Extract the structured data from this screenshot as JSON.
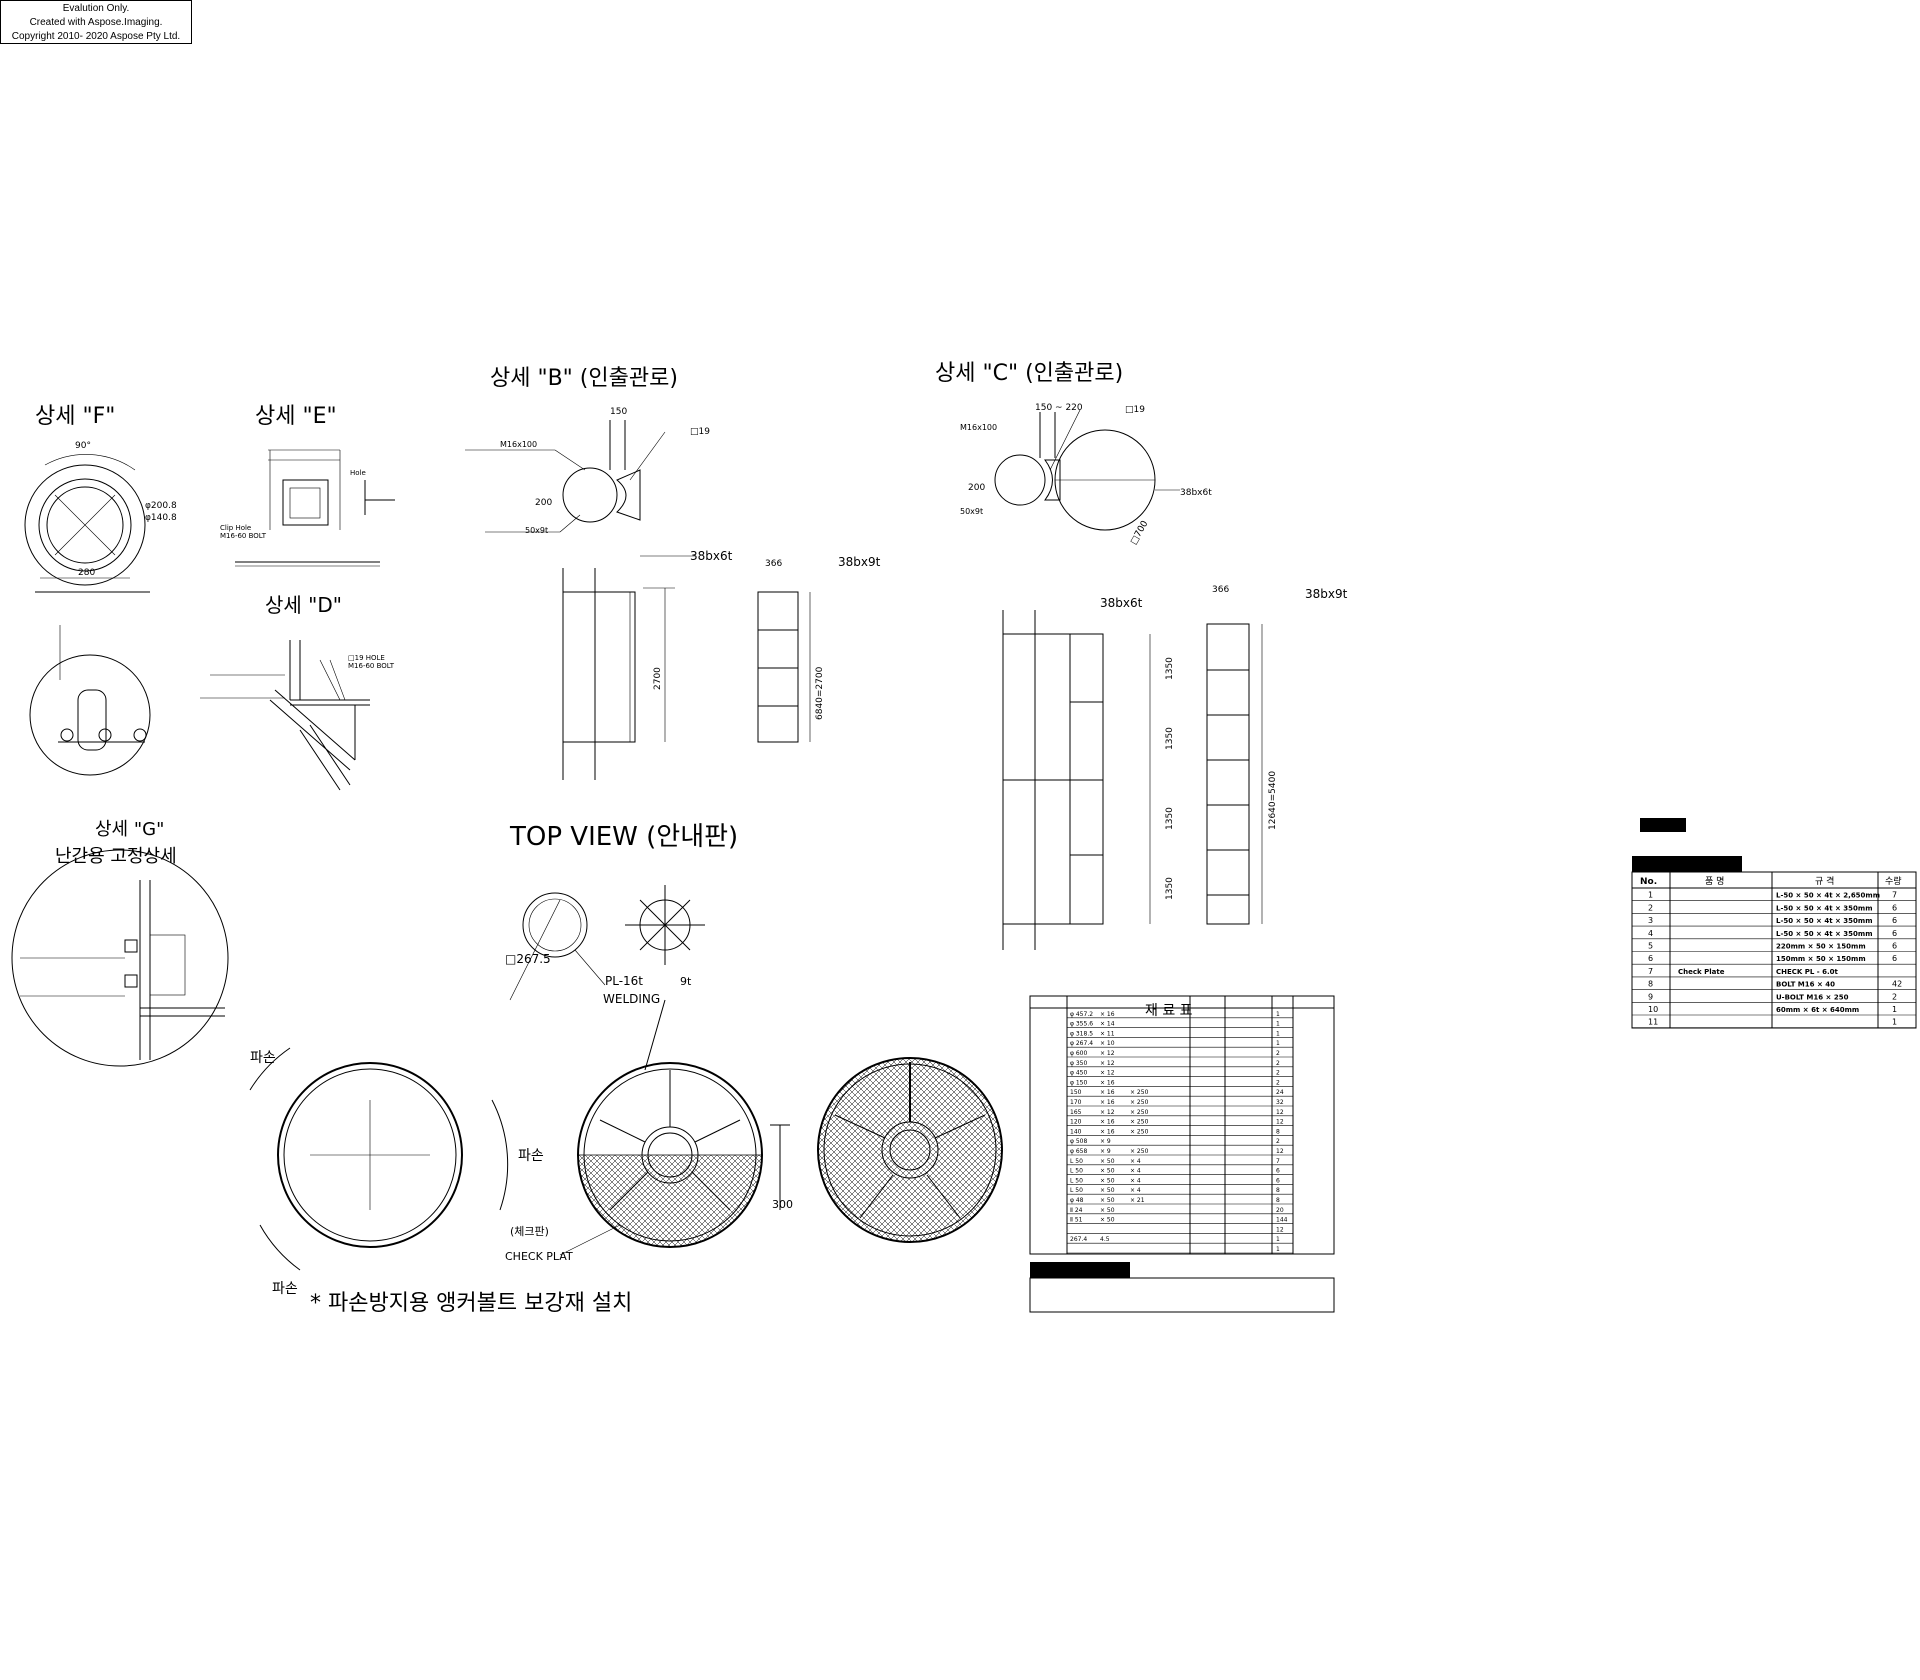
{
  "watermark": {
    "line1": "Evalution Only.",
    "line2": "Created with Aspose.Imaging.",
    "line3": "Copyright 2010- 2020 Aspose Pty Ltd."
  },
  "views": {
    "f_title": "상세 \"F\"",
    "e_title": "상세 \"E\"",
    "d_title": "상세 \"D\"",
    "g_title": "상세 \"G\"",
    "g_subtitle": "난간용 고정상세",
    "b_title": "상세 \"B\" (인출관로)",
    "c_title": "상세 \"C\" (인출관로)",
    "top_view": "TOP VIEW (안내판)",
    "bottom_note": "* 파손방지용 앵커볼트 보강재 설치"
  },
  "labels": {
    "f_90": "90°",
    "f_phi1": "φ140.8",
    "f_phi2": "φ200.8",
    "f_280": "280",
    "e_hole": "Hole",
    "e_clip": "Clip Hole",
    "e_bolt": "M16-60 BOLT",
    "d_hole": "□19 HOLE",
    "d_bolt": "M16-60 BOLT",
    "b_m16": "M16x100",
    "b_150": "150",
    "b_d19": "□19",
    "b_200": "200",
    "b_50x9": "50x9t",
    "b_38x6": "38bx6t",
    "b_366": "366",
    "b_38x9": "38bx9t",
    "b_2700": "2700",
    "b_6840": "6840=2700",
    "c_150_220": "150 ~ 220",
    "c_d19": "□19",
    "c_m16": "M16x100",
    "c_200": "200",
    "c_50x9": "50x9t",
    "c_38x6_a": "38bx6t",
    "c_d700": "□700",
    "c_38x6": "38bx6t",
    "c_366": "366",
    "c_38x9": "38bx9t",
    "c_1350a": "1350",
    "c_1350b": "1350",
    "c_1350c": "1350",
    "c_1350d": "1350",
    "c_total": "12640=5400",
    "tv_d267": "□267.5",
    "tv_pl": "PL-16t",
    "tv_welding": "WELDING",
    "tv_9t": "9t",
    "tv_check": "CHECK PLAT",
    "tv_300": "300"
  },
  "material_table": {
    "title": "재 료 표",
    "rows": [
      [
        "φ 457.2",
        "× 16",
        "",
        "",
        "1"
      ],
      [
        "φ 355.6",
        "× 14",
        "",
        "",
        "1"
      ],
      [
        "φ 318.5",
        "× 11",
        "",
        "",
        "1"
      ],
      [
        "φ 267.4",
        "× 10",
        "",
        "",
        "1"
      ],
      [
        "φ 600",
        "× 12",
        "",
        "",
        "2"
      ],
      [
        "φ 350",
        "× 12",
        "",
        "",
        "2"
      ],
      [
        "φ 450",
        "× 12",
        "",
        "",
        "2"
      ],
      [
        "φ 150",
        "× 16",
        "",
        "",
        "2"
      ],
      [
        "150",
        "× 16",
        "× 250",
        "",
        "24"
      ],
      [
        "170",
        "× 16",
        "× 250",
        "",
        "32"
      ],
      [
        "165",
        "× 12",
        "× 250",
        "",
        "12"
      ],
      [
        "120",
        "× 16",
        "× 250",
        "",
        "12"
      ],
      [
        "140",
        "× 16",
        "× 250",
        "",
        "8"
      ],
      [
        "φ 508",
        "× 9",
        "",
        "",
        "2"
      ],
      [
        "φ 658",
        "× 9",
        "× 250",
        "",
        "12"
      ],
      [
        "L 50",
        "× 50",
        "× 4",
        "",
        "7"
      ],
      [
        "L 50",
        "× 50",
        "× 4",
        "",
        "6"
      ],
      [
        "L 50",
        "× 50",
        "× 4",
        "",
        "6"
      ],
      [
        "L 50",
        "× 50",
        "× 4",
        "",
        "8"
      ],
      [
        "φ 48",
        "× 50",
        "× 21",
        "",
        "8"
      ],
      [
        "Ⅱ 24",
        "× 50",
        "",
        "",
        "20"
      ],
      [
        "Ⅱ 51",
        "× 50",
        "",
        "",
        "144"
      ],
      [
        "",
        "",
        "",
        "",
        "12"
      ],
      [
        "267.4",
        "4.5",
        "",
        "",
        "1"
      ],
      [
        "",
        "",
        "",
        "",
        "1"
      ]
    ]
  },
  "parts_table": {
    "header_no": "No.",
    "header_name": "품 명",
    "header_spec": "규 격",
    "header_qty": "수량",
    "rows": [
      {
        "no": "1",
        "name": "",
        "spec": "L-50 × 50 × 4t × 2,650mm",
        "qty": "7"
      },
      {
        "no": "2",
        "name": "",
        "spec": "L-50 × 50 × 4t × 350mm",
        "qty": "6"
      },
      {
        "no": "3",
        "name": "",
        "spec": "L-50 × 50 × 4t × 350mm",
        "qty": "6"
      },
      {
        "no": "4",
        "name": "",
        "spec": "L-50 × 50 × 4t × 350mm",
        "qty": "6"
      },
      {
        "no": "5",
        "name": "",
        "spec": "220mm × 50 × 150mm",
        "qty": "6"
      },
      {
        "no": "6",
        "name": "",
        "spec": "150mm × 50 × 150mm",
        "qty": "6"
      },
      {
        "no": "7",
        "name": "Check Plate",
        "spec": "CHECK PL - 6.0t",
        "qty": ""
      },
      {
        "no": "8",
        "name": "",
        "spec": "BOLT M16 × 40",
        "qty": "42"
      },
      {
        "no": "9",
        "name": "",
        "spec": "U-BOLT M16 × 250",
        "qty": "2"
      },
      {
        "no": "10",
        "name": "",
        "spec": "60mm × 6t × 640mm",
        "qty": "1"
      },
      {
        "no": "11",
        "name": "",
        "spec": "",
        "qty": "1"
      }
    ]
  }
}
